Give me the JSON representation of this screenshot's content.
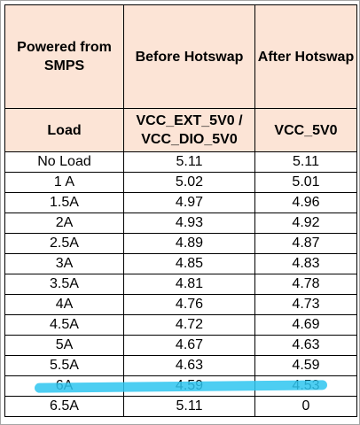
{
  "table": {
    "header": {
      "powered_from": "Powered from\nSMPS",
      "before_hotswap": "Before Hotswap",
      "after_hotswap": "After Hotswap",
      "load": "Load",
      "before_rail": "VCC_EXT_5V0 /\nVCC_DIO_5V0",
      "after_rail": "VCC_5V0"
    },
    "rows": [
      {
        "load": "No Load",
        "before": "5.11",
        "after": "5.11"
      },
      {
        "load": "1 A",
        "before": "5.02",
        "after": "5.01"
      },
      {
        "load": "1.5A",
        "before": "4.97",
        "after": "4.96"
      },
      {
        "load": "2A",
        "before": "4.93",
        "after": "4.92"
      },
      {
        "load": "2.5A",
        "before": "4.89",
        "after": "4.87"
      },
      {
        "load": "3A",
        "before": "4.85",
        "after": "4.83"
      },
      {
        "load": "3.5A",
        "before": "4.81",
        "after": "4.78"
      },
      {
        "load": "4A",
        "before": "4.76",
        "after": "4.73"
      },
      {
        "load": "4.5A",
        "before": "4.72",
        "after": "4.69"
      },
      {
        "load": "5A",
        "before": "4.67",
        "after": "4.63"
      },
      {
        "load": "5.5A",
        "before": "4.63",
        "after": "4.59"
      },
      {
        "load": "6A",
        "before": "4.59",
        "after": "4.53"
      },
      {
        "load": "6.5A",
        "before": "5.11",
        "after": "0"
      }
    ]
  },
  "colors": {
    "header_fill": "#fce4d6",
    "highlight": "#2ec5f0",
    "border": "#000000"
  }
}
